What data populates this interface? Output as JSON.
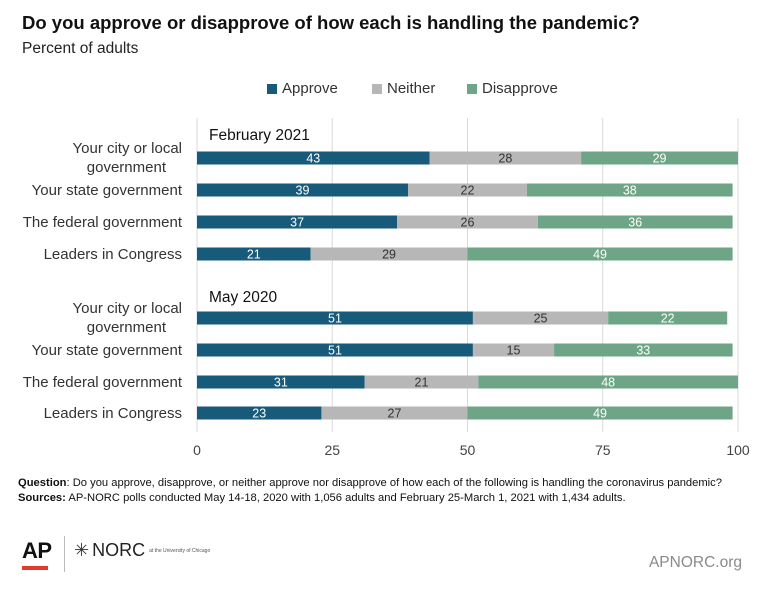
{
  "header": {
    "title": "Do you approve or disapprove of how each is handling the pandemic?",
    "subtitle": "Percent of adults"
  },
  "colors": {
    "approve": "#175a79",
    "neither": "#b7b7b7",
    "disapprove": "#6ea586"
  },
  "chart_data": {
    "type": "bar",
    "orientation": "horizontal",
    "stacked": true,
    "series": [
      {
        "name": "Approve"
      },
      {
        "name": "Neither"
      },
      {
        "name": "Disapprove"
      }
    ],
    "groups": [
      {
        "title": "February 2021",
        "rows": [
          {
            "category": "Your city or local government",
            "values": [
              43,
              28,
              29
            ]
          },
          {
            "category": "Your state government",
            "values": [
              39,
              22,
              38
            ]
          },
          {
            "category": "The federal government",
            "values": [
              37,
              26,
              36
            ]
          },
          {
            "category": "Leaders in Congress",
            "values": [
              21,
              29,
              49
            ]
          }
        ]
      },
      {
        "title": "May 2020",
        "rows": [
          {
            "category": "Your city or local government",
            "values": [
              51,
              25,
              22
            ]
          },
          {
            "category": "Your state government",
            "values": [
              51,
              15,
              33
            ]
          },
          {
            "category": "The federal government",
            "values": [
              31,
              21,
              48
            ]
          },
          {
            "category": "Leaders in Congress",
            "values": [
              23,
              27,
              49
            ]
          }
        ]
      }
    ],
    "xlim": [
      0,
      100
    ],
    "xticks": [
      "0",
      "25",
      "50",
      "75",
      "100"
    ],
    "grid": true,
    "legend_position": "top"
  },
  "notes": {
    "question_label": "Question",
    "question_text": ": Do you approve, disapprove, or neither approve nor disapprove of how each of the following is handling the coronavirus pandemic?",
    "sources_label": "Sources:",
    "sources_text": " AP-NORC polls conducted May 14-18, 2020 with 1,056 adults and February 25-March 1, 2021 with 1,434 adults."
  },
  "footer": {
    "ap_logo": "AP",
    "norc_logo": "NORC",
    "norc_small": "at the University of Chicago",
    "site": "APNORC.org"
  }
}
